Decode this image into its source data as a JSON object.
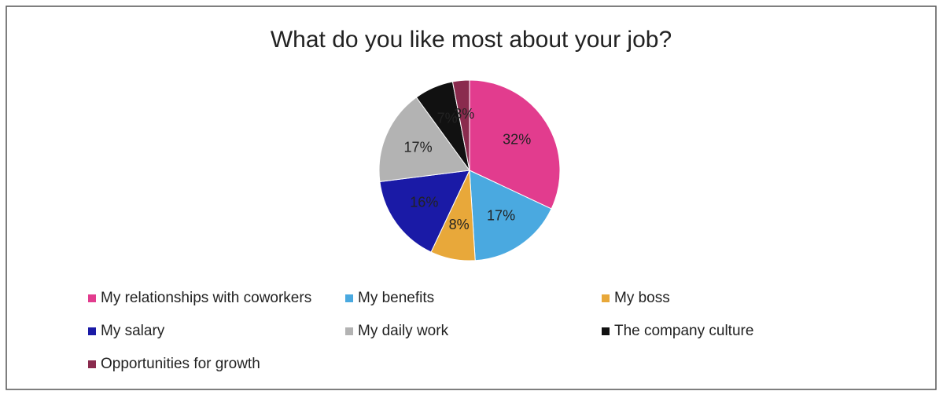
{
  "chart_data": {
    "type": "pie",
    "title": "What do you like most about your job?",
    "categories": [
      "My relationships with coworkers",
      "My benefits",
      "My boss",
      "My salary",
      "My daily work",
      "The company culture",
      "Opportunities for growth"
    ],
    "values": [
      32,
      17,
      8,
      16,
      17,
      7,
      3
    ],
    "value_labels": [
      "32%",
      "17%",
      "8%",
      "16%",
      "17%",
      "7%",
      "3%"
    ],
    "colors": [
      "#e23c8e",
      "#4aa9e0",
      "#e8a83a",
      "#1a1aa6",
      "#b3b3b3",
      "#111111",
      "#8a2b4e"
    ],
    "legend": "bottom"
  }
}
